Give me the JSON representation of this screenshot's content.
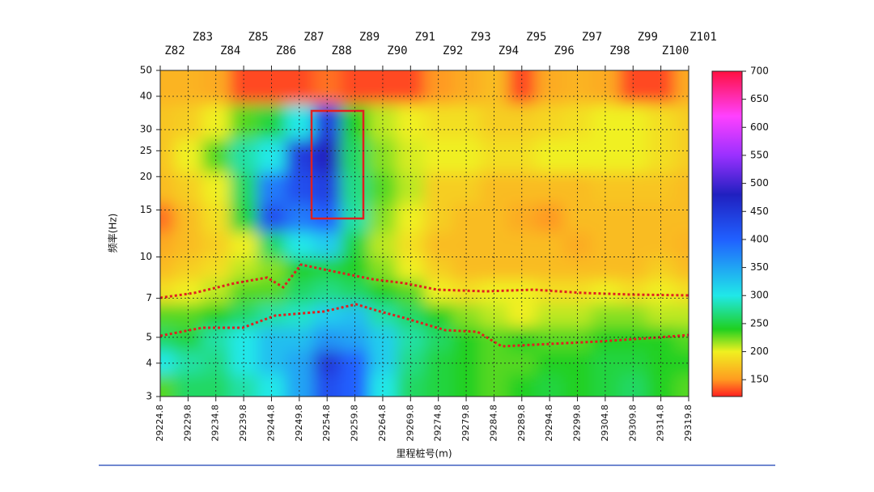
{
  "chart_data": {
    "type": "heatmap",
    "ylabel": "频率(Hz)",
    "xlabel": "里程桩号(m)",
    "log_y": true,
    "grid": true,
    "x": [
      29224.8,
      29229.8,
      29234.8,
      29239.8,
      29244.8,
      29249.8,
      29254.8,
      29259.8,
      29264.8,
      29269.8,
      29274.8,
      29279.8,
      29284.8,
      29289.8,
      29294.8,
      29299.8,
      29304.8,
      29309.8,
      29314.8,
      29319.8
    ],
    "stations": [
      "Z82",
      "Z83",
      "Z84",
      "Z85",
      "Z86",
      "Z87",
      "Z88",
      "Z89",
      "Z90",
      "Z91",
      "Z92",
      "Z93",
      "Z94",
      "Z95",
      "Z96",
      "Z97",
      "Z98",
      "Z99",
      "Z100",
      "Z101"
    ],
    "y": [
      3.3,
      4,
      5,
      6,
      7.5,
      9,
      11,
      14,
      18,
      24,
      32,
      44
    ],
    "values": [
      [
        230,
        260,
        260,
        280,
        300,
        350,
        420,
        400,
        300,
        260,
        250,
        240,
        230,
        240,
        250,
        240,
        250,
        260,
        240,
        230
      ],
      [
        300,
        280,
        270,
        300,
        330,
        350,
        450,
        400,
        320,
        270,
        250,
        240,
        230,
        230,
        240,
        240,
        250,
        250,
        240,
        240
      ],
      [
        260,
        250,
        280,
        300,
        330,
        330,
        360,
        350,
        320,
        280,
        260,
        240,
        230,
        240,
        230,
        230,
        240,
        240,
        240,
        230
      ],
      [
        230,
        230,
        240,
        260,
        280,
        290,
        320,
        330,
        280,
        260,
        240,
        220,
        210,
        200,
        210,
        210,
        220,
        220,
        210,
        210
      ],
      [
        190,
        200,
        210,
        230,
        230,
        260,
        270,
        260,
        240,
        230,
        200,
        190,
        200,
        200,
        190,
        190,
        200,
        190,
        200,
        190
      ],
      [
        170,
        180,
        190,
        210,
        220,
        240,
        250,
        240,
        220,
        200,
        180,
        170,
        170,
        170,
        170,
        170,
        170,
        170,
        180,
        170
      ],
      [
        160,
        170,
        180,
        200,
        260,
        300,
        320,
        250,
        210,
        190,
        170,
        170,
        170,
        170,
        170,
        160,
        170,
        170,
        170,
        165
      ],
      [
        140,
        170,
        190,
        250,
        420,
        380,
        400,
        280,
        220,
        200,
        180,
        170,
        170,
        160,
        150,
        170,
        170,
        170,
        170,
        170
      ],
      [
        170,
        180,
        200,
        260,
        380,
        420,
        440,
        270,
        230,
        210,
        180,
        180,
        170,
        170,
        170,
        170,
        175,
        175,
        175,
        170
      ],
      [
        175,
        200,
        230,
        280,
        300,
        440,
        480,
        260,
        220,
        205,
        200,
        200,
        190,
        190,
        200,
        200,
        200,
        200,
        190,
        180
      ],
      [
        175,
        180,
        200,
        230,
        250,
        300,
        440,
        240,
        210,
        200,
        190,
        190,
        180,
        180,
        185,
        190,
        200,
        200,
        190,
        180
      ],
      [
        165,
        165,
        160,
        130,
        130,
        130,
        140,
        130,
        130,
        130,
        150,
        160,
        170,
        130,
        160,
        165,
        160,
        130,
        130,
        160
      ]
    ],
    "xlim": [
      29224.8,
      29319.8
    ],
    "ylim": [
      3,
      50
    ],
    "yticks": [
      3,
      4,
      5,
      7,
      10,
      15,
      20,
      25,
      30,
      40,
      50
    ],
    "clim": [
      120,
      700
    ],
    "cticks": [
      150,
      200,
      250,
      300,
      350,
      400,
      450,
      500,
      550,
      600,
      650,
      700
    ],
    "colorscale": [
      [
        120,
        "#ff2020"
      ],
      [
        150,
        "#ff9a20"
      ],
      [
        200,
        "#f0f020"
      ],
      [
        240,
        "#20d020"
      ],
      [
        300,
        "#20e8e8"
      ],
      [
        400,
        "#2060ff"
      ],
      [
        480,
        "#2020c0"
      ],
      [
        550,
        "#9a30ff"
      ],
      [
        620,
        "#ff40ff"
      ],
      [
        700,
        "#ff1040"
      ]
    ]
  }
}
